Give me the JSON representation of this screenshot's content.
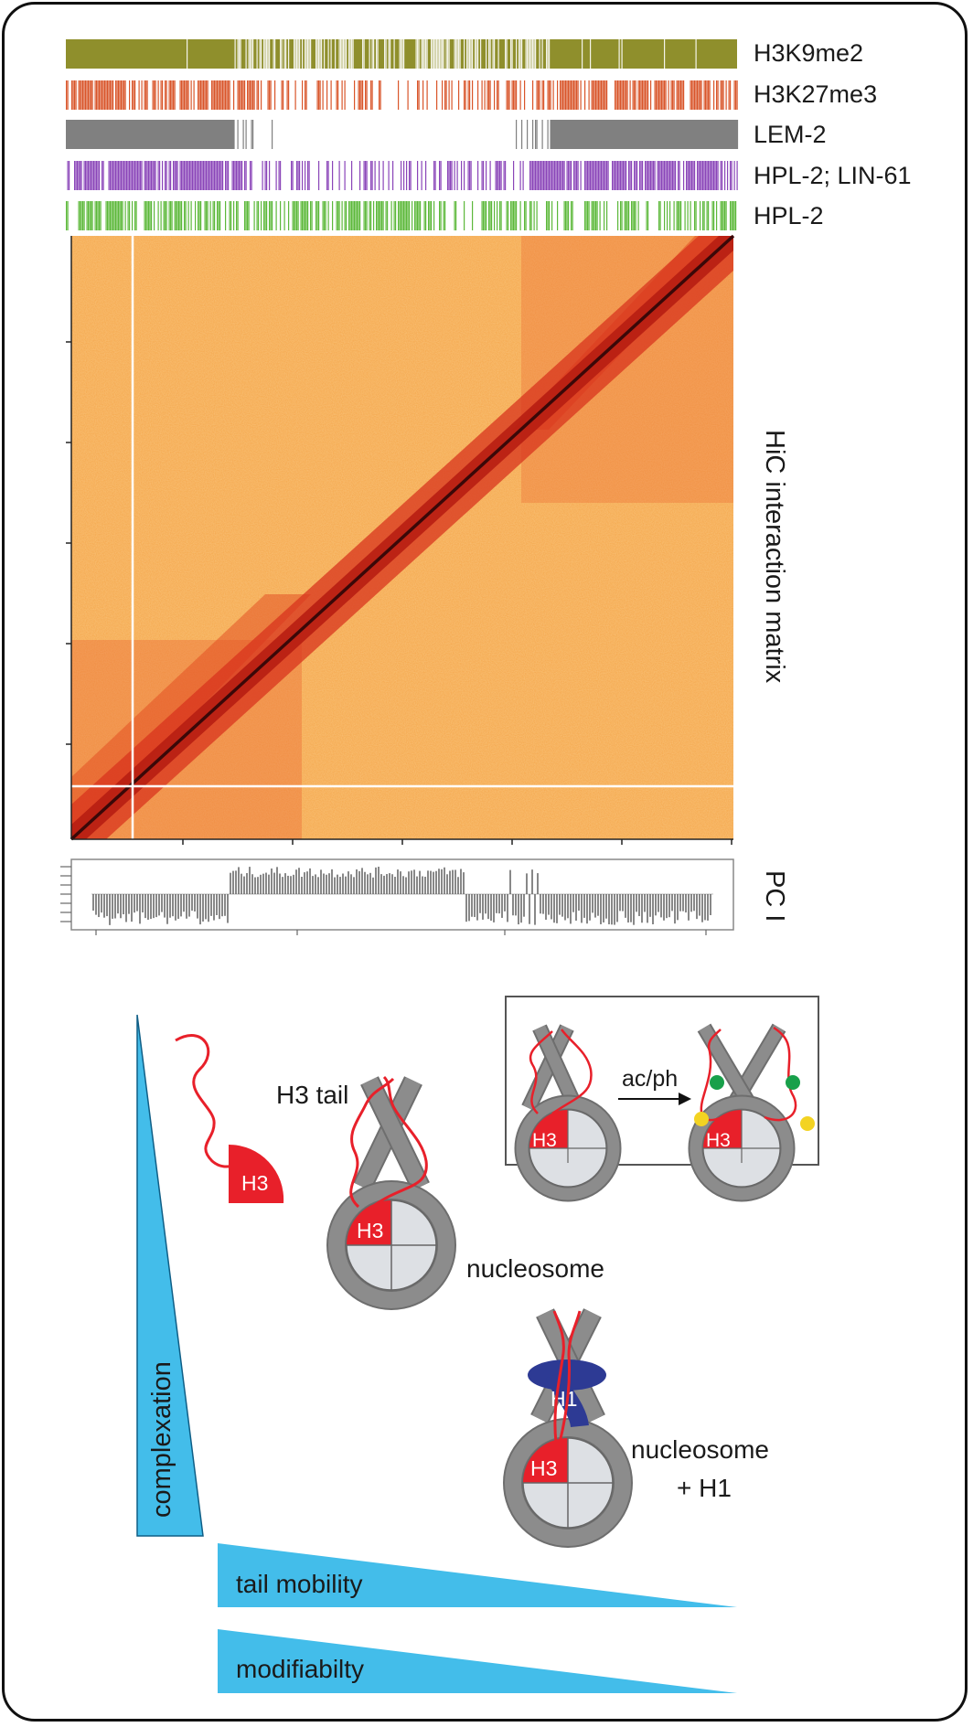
{
  "tracks": [
    {
      "label": "H3K9me2",
      "color": "#8f8f2c"
    },
    {
      "label": "H3K27me3",
      "color": "#d9552a"
    },
    {
      "label": "LEM-2",
      "color": "#808080"
    },
    {
      "label": "HPL-2; LIN-61",
      "color": "#8a45b8"
    },
    {
      "label": "HPL-2",
      "color": "#5cb83a"
    }
  ],
  "hic": {
    "side_label": "HiC interaction matrix",
    "background": "#f4a84a",
    "diagonal": "#3a0a0a",
    "enriched": "#d8301a"
  },
  "pc": {
    "label": "PC I"
  },
  "scheme": {
    "h3_tail_label": "H3 tail",
    "nucleosome_label": "nucleosome",
    "nucleosome_h1_line1": "nucleosome",
    "nucleosome_h1_line2": "+ H1",
    "h3": "H3",
    "h1": "H1",
    "arrow_label": "ac/ph",
    "complexation": "complexation",
    "tail_mobility": "tail mobility",
    "modifiability": "modifiabilty",
    "colors": {
      "tail": "#e8202a",
      "histone": "#e8202a",
      "dna": "#8c8c8c",
      "core": "#dde0e4",
      "h1": "#2d3a94",
      "wedge": "#43bdea",
      "acetyl": "#18a04a",
      "phospho": "#f3d322"
    }
  }
}
